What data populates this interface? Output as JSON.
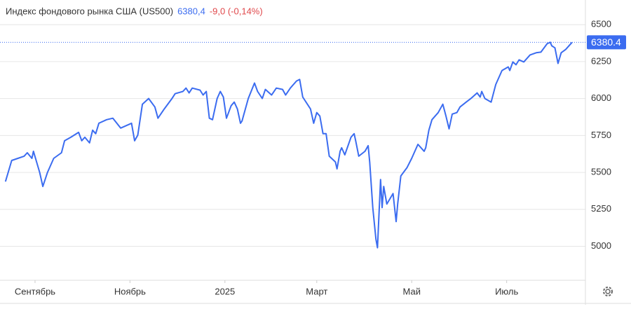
{
  "header": {
    "title": "Индекс фондового рынка США (US500)",
    "price": "6380,4",
    "change": "-9,0 (-0,14%)"
  },
  "chart_data": {
    "type": "line",
    "color": "#3b6cf0",
    "x": [
      -19,
      -15,
      -11,
      -7,
      -5,
      -2,
      -1,
      3,
      5,
      8,
      12,
      17,
      19,
      23,
      28,
      30,
      32,
      35,
      37,
      39,
      41,
      46,
      50,
      55,
      62,
      64,
      66,
      69,
      73,
      77,
      79,
      83,
      88,
      90,
      95,
      97,
      99,
      101,
      106,
      108,
      110,
      112,
      114,
      117,
      119,
      121,
      123,
      126,
      128,
      130,
      132,
      133,
      137,
      141,
      143,
      146,
      148,
      152,
      155,
      159,
      161,
      164,
      168,
      170,
      172,
      177,
      179,
      181,
      183,
      185,
      187,
      189,
      193,
      194,
      196,
      197,
      199,
      203,
      205,
      206,
      208,
      212,
      214,
      215,
      217,
      219,
      220,
      222,
      223,
      224,
      226,
      230,
      232,
      233,
      235,
      239,
      242,
      246,
      250,
      251,
      253,
      255,
      259,
      262,
      264,
      266,
      268,
      271,
      273,
      277,
      280,
      284,
      286,
      287,
      289,
      293,
      296,
      300,
      304,
      305,
      307,
      309,
      311,
      314,
      318,
      322,
      325,
      329,
      331,
      332,
      334,
      336,
      338,
      341,
      345
    ],
    "values": [
      5438,
      5581,
      5595,
      5610,
      5633,
      5595,
      5643,
      5500,
      5405,
      5500,
      5595,
      5633,
      5714,
      5738,
      5771,
      5714,
      5738,
      5700,
      5786,
      5762,
      5833,
      5857,
      5867,
      5800,
      5833,
      5714,
      5752,
      5962,
      6000,
      5943,
      5867,
      5929,
      6000,
      6033,
      6048,
      6071,
      6038,
      6071,
      6057,
      6024,
      6048,
      5867,
      5857,
      6000,
      6048,
      6010,
      5867,
      5952,
      5976,
      5929,
      5833,
      5848,
      6000,
      6105,
      6048,
      6000,
      6062,
      6024,
      6071,
      6062,
      6024,
      6071,
      6119,
      6129,
      6010,
      5929,
      5833,
      5905,
      5881,
      5762,
      5762,
      5610,
      5571,
      5524,
      5643,
      5667,
      5619,
      5738,
      5762,
      5714,
      5610,
      5643,
      5681,
      5571,
      5262,
      5048,
      4990,
      5452,
      5262,
      5405,
      5286,
      5357,
      5167,
      5286,
      5476,
      5533,
      5595,
      5690,
      5643,
      5667,
      5786,
      5857,
      5905,
      5962,
      5881,
      5795,
      5895,
      5905,
      5943,
      5976,
      6000,
      6038,
      6010,
      6048,
      6000,
      5976,
      6095,
      6190,
      6214,
      6190,
      6248,
      6229,
      6262,
      6248,
      6295,
      6310,
      6314,
      6371,
      6381,
      6357,
      6343,
      6238,
      6310,
      6333,
      6380.4
    ],
    "xlim": [
      -22.5,
      353.6
    ],
    "xticks": [
      {
        "value": 0,
        "label": "Сентябрь"
      },
      {
        "value": 61,
        "label": "Ноябрь"
      },
      {
        "value": 122,
        "label": "2025"
      },
      {
        "value": 181,
        "label": "Март"
      },
      {
        "value": 242,
        "label": "Май"
      },
      {
        "value": 303,
        "label": "Июль"
      }
    ],
    "ylim": [
      4770,
      6667
    ],
    "yticks": [
      5000,
      5250,
      5500,
      5750,
      6000,
      6250,
      6500
    ],
    "grid": true,
    "current_line": {
      "value": 6380.4,
      "label": "6380.4"
    }
  }
}
